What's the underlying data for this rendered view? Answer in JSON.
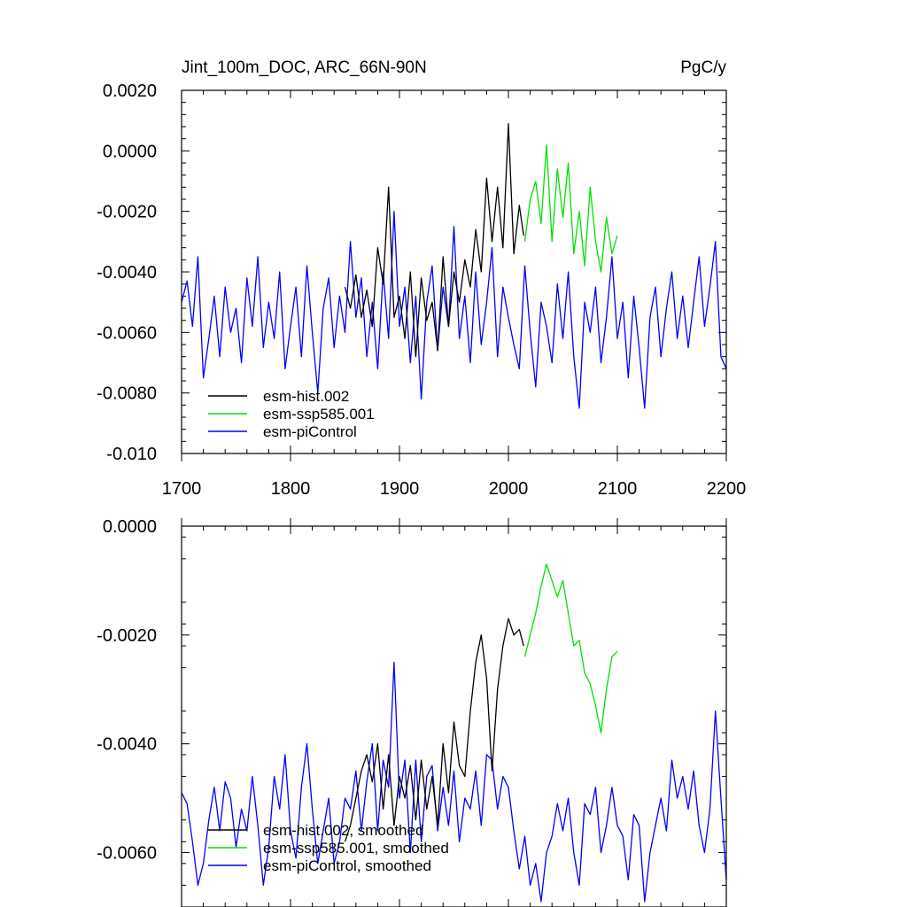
{
  "chart_data": [
    {
      "type": "line",
      "title": "Jint_100m_DOC, ARC_66N-90N",
      "units": "PgC/y",
      "xlim": [
        1700,
        2200
      ],
      "ylim": [
        -0.01,
        0.002
      ],
      "xticks": [
        1700,
        1800,
        1900,
        2000,
        2100,
        2200
      ],
      "xtick_labels": [
        "1700",
        "1800",
        "1900",
        "2000",
        "2100",
        "2200"
      ],
      "yticks": [
        -0.01,
        -0.008,
        -0.006,
        -0.004,
        -0.002,
        0.0,
        0.002
      ],
      "ytick_labels": [
        "-0.010",
        "-0.0080",
        "-0.0060",
        "-0.0040",
        "-0.0020",
        "0.0000",
        "0.0020"
      ],
      "legend_position": "bottom-left",
      "series": [
        {
          "name": "esm-hist.002",
          "color": "#000000",
          "x": [
            1850,
            1855,
            1860,
            1865,
            1870,
            1875,
            1880,
            1885,
            1890,
            1895,
            1900,
            1905,
            1910,
            1915,
            1920,
            1925,
            1930,
            1935,
            1940,
            1945,
            1950,
            1955,
            1960,
            1965,
            1970,
            1975,
            1980,
            1985,
            1990,
            1995,
            2000,
            2005,
            2010,
            2014
          ],
          "values": [
            -0.0045,
            -0.0052,
            -0.0041,
            -0.0055,
            -0.0046,
            -0.0058,
            -0.0032,
            -0.0044,
            -0.0012,
            -0.0055,
            -0.0048,
            -0.0062,
            -0.004,
            -0.0068,
            -0.0042,
            -0.0056,
            -0.005,
            -0.0066,
            -0.0035,
            -0.0058,
            -0.004,
            -0.005,
            -0.0036,
            -0.0045,
            -0.0026,
            -0.004,
            -0.0009,
            -0.003,
            -0.0012,
            -0.0032,
            0.0009,
            -0.0034,
            -0.0018,
            -0.0028
          ]
        },
        {
          "name": "esm-ssp585.001",
          "color": "#00e000",
          "x": [
            2015,
            2020,
            2025,
            2030,
            2035,
            2040,
            2045,
            2050,
            2055,
            2060,
            2065,
            2070,
            2075,
            2080,
            2085,
            2090,
            2095,
            2100
          ],
          "values": [
            -0.003,
            -0.0016,
            -0.001,
            -0.0024,
            0.0002,
            -0.003,
            -0.0006,
            -0.0022,
            -0.0004,
            -0.0034,
            -0.002,
            -0.0038,
            -0.0012,
            -0.003,
            -0.004,
            -0.0022,
            -0.0034,
            -0.0028
          ]
        },
        {
          "name": "esm-piControl",
          "color": "#0000ff",
          "x": [
            1700,
            1705,
            1710,
            1715,
            1720,
            1725,
            1730,
            1735,
            1740,
            1745,
            1750,
            1755,
            1760,
            1765,
            1770,
            1775,
            1780,
            1785,
            1790,
            1795,
            1800,
            1805,
            1810,
            1815,
            1820,
            1825,
            1830,
            1835,
            1840,
            1845,
            1850,
            1855,
            1860,
            1865,
            1870,
            1875,
            1880,
            1885,
            1890,
            1895,
            1900,
            1905,
            1910,
            1915,
            1920,
            1925,
            1930,
            1935,
            1940,
            1945,
            1950,
            1955,
            1960,
            1965,
            1970,
            1975,
            1980,
            1985,
            1990,
            1995,
            2000,
            2005,
            2010,
            2015,
            2020,
            2025,
            2030,
            2035,
            2040,
            2045,
            2050,
            2055,
            2060,
            2065,
            2070,
            2075,
            2080,
            2085,
            2090,
            2095,
            2100,
            2105,
            2110,
            2115,
            2120,
            2125,
            2130,
            2135,
            2140,
            2145,
            2150,
            2155,
            2160,
            2165,
            2170,
            2175,
            2180,
            2185,
            2190,
            2195,
            2200
          ],
          "values": [
            -0.005,
            -0.0043,
            -0.0058,
            -0.0035,
            -0.0075,
            -0.0062,
            -0.0048,
            -0.0068,
            -0.0045,
            -0.006,
            -0.0052,
            -0.007,
            -0.0042,
            -0.0058,
            -0.0035,
            -0.0065,
            -0.005,
            -0.0062,
            -0.004,
            -0.0072,
            -0.0058,
            -0.0045,
            -0.0068,
            -0.0038,
            -0.006,
            -0.008,
            -0.0052,
            -0.0042,
            -0.0065,
            -0.0048,
            -0.006,
            -0.003,
            -0.0055,
            -0.0042,
            -0.0068,
            -0.005,
            -0.0072,
            -0.004,
            -0.0062,
            -0.002,
            -0.0058,
            -0.0045,
            -0.007,
            -0.0048,
            -0.0082,
            -0.005,
            -0.0038,
            -0.0066,
            -0.0045,
            -0.0058,
            -0.0025,
            -0.0062,
            -0.0048,
            -0.007,
            -0.004,
            -0.0064,
            -0.005,
            -0.0032,
            -0.0068,
            -0.0045,
            -0.0055,
            -0.0064,
            -0.0072,
            -0.0038,
            -0.006,
            -0.0078,
            -0.005,
            -0.0058,
            -0.007,
            -0.0044,
            -0.0062,
            -0.004,
            -0.0068,
            -0.0085,
            -0.005,
            -0.006,
            -0.0045,
            -0.007,
            -0.0055,
            -0.0035,
            -0.0062,
            -0.005,
            -0.0075,
            -0.0048,
            -0.0065,
            -0.0085,
            -0.0055,
            -0.0045,
            -0.0068,
            -0.0052,
            -0.004,
            -0.0062,
            -0.0048,
            -0.0065,
            -0.005,
            -0.0035,
            -0.0058,
            -0.0045,
            -0.003,
            -0.0068,
            -0.0072
          ]
        }
      ]
    },
    {
      "type": "line",
      "xlim": [
        1700,
        2200
      ],
      "ylim": [
        -0.007,
        0.0
      ],
      "xticks": [
        1700,
        1800,
        1900,
        2000,
        2100,
        2200
      ],
      "yticks": [
        -0.006,
        -0.004,
        -0.002,
        0.0
      ],
      "ytick_labels": [
        "-0.0060",
        "-0.0040",
        "-0.0020",
        "0.0000"
      ],
      "legend_position": "bottom-left",
      "series": [
        {
          "name": "esm-hist.002, smoothed",
          "color": "#000000",
          "x": [
            1850,
            1855,
            1860,
            1865,
            1870,
            1875,
            1880,
            1885,
            1890,
            1895,
            1900,
            1905,
            1910,
            1915,
            1920,
            1925,
            1930,
            1935,
            1940,
            1945,
            1950,
            1955,
            1960,
            1965,
            1970,
            1975,
            1980,
            1985,
            1990,
            1995,
            2000,
            2005,
            2010,
            2014
          ],
          "values": [
            -0.0058,
            -0.0055,
            -0.005,
            -0.0045,
            -0.0042,
            -0.0047,
            -0.004,
            -0.0052,
            -0.0042,
            -0.0055,
            -0.0046,
            -0.005,
            -0.0044,
            -0.0054,
            -0.0043,
            -0.0052,
            -0.0046,
            -0.0055,
            -0.004,
            -0.0049,
            -0.0036,
            -0.0044,
            -0.0046,
            -0.0034,
            -0.0025,
            -0.002,
            -0.0028,
            -0.0045,
            -0.003,
            -0.0022,
            -0.0017,
            -0.002,
            -0.0019,
            -0.0022
          ]
        },
        {
          "name": "esm-ssp585.001, smoothed",
          "color": "#00e000",
          "x": [
            2015,
            2020,
            2025,
            2030,
            2035,
            2040,
            2045,
            2050,
            2055,
            2060,
            2065,
            2070,
            2075,
            2080,
            2085,
            2090,
            2095,
            2100
          ],
          "values": [
            -0.0024,
            -0.002,
            -0.0016,
            -0.0011,
            -0.0007,
            -0.001,
            -0.0013,
            -0.001,
            -0.0016,
            -0.0022,
            -0.0021,
            -0.0027,
            -0.0029,
            -0.0033,
            -0.0038,
            -0.003,
            -0.0024,
            -0.0023
          ]
        },
        {
          "name": "esm-piControl, smoothed",
          "color": "#0000ff",
          "x": [
            1700,
            1705,
            1710,
            1715,
            1720,
            1725,
            1730,
            1735,
            1740,
            1745,
            1750,
            1755,
            1760,
            1765,
            1770,
            1775,
            1780,
            1785,
            1790,
            1795,
            1800,
            1805,
            1810,
            1815,
            1820,
            1825,
            1830,
            1835,
            1840,
            1845,
            1850,
            1855,
            1860,
            1865,
            1870,
            1875,
            1880,
            1885,
            1890,
            1895,
            1900,
            1905,
            1910,
            1915,
            1920,
            1925,
            1930,
            1935,
            1940,
            1945,
            1950,
            1955,
            1960,
            1965,
            1970,
            1975,
            1980,
            1985,
            1990,
            1995,
            2000,
            2005,
            2010,
            2015,
            2020,
            2025,
            2030,
            2035,
            2040,
            2045,
            2050,
            2055,
            2060,
            2065,
            2070,
            2075,
            2080,
            2085,
            2090,
            2095,
            2100,
            2105,
            2110,
            2115,
            2120,
            2125,
            2130,
            2135,
            2140,
            2145,
            2150,
            2155,
            2160,
            2165,
            2170,
            2175,
            2180,
            2185,
            2190,
            2195,
            2200
          ],
          "values": [
            -0.0049,
            -0.0051,
            -0.0058,
            -0.0066,
            -0.0062,
            -0.0054,
            -0.0048,
            -0.0056,
            -0.0047,
            -0.005,
            -0.0059,
            -0.0052,
            -0.0056,
            -0.0046,
            -0.0055,
            -0.0066,
            -0.0059,
            -0.0046,
            -0.0052,
            -0.0042,
            -0.0056,
            -0.0061,
            -0.0048,
            -0.004,
            -0.0052,
            -0.0062,
            -0.0056,
            -0.005,
            -0.0062,
            -0.0058,
            -0.005,
            -0.0052,
            -0.0045,
            -0.0056,
            -0.0047,
            -0.004,
            -0.0056,
            -0.0043,
            -0.0048,
            -0.0025,
            -0.005,
            -0.0043,
            -0.006,
            -0.0043,
            -0.0058,
            -0.0046,
            -0.0044,
            -0.0056,
            -0.0048,
            -0.0055,
            -0.0045,
            -0.0058,
            -0.005,
            -0.0052,
            -0.0045,
            -0.0055,
            -0.0042,
            -0.0043,
            -0.0052,
            -0.0046,
            -0.0048,
            -0.0056,
            -0.0063,
            -0.0057,
            -0.0066,
            -0.0062,
            -0.0069,
            -0.006,
            -0.0057,
            -0.0051,
            -0.0056,
            -0.005,
            -0.006,
            -0.0066,
            -0.0051,
            -0.0053,
            -0.0048,
            -0.006,
            -0.0055,
            -0.0048,
            -0.0055,
            -0.0057,
            -0.0065,
            -0.0053,
            -0.0055,
            -0.0069,
            -0.006,
            -0.0055,
            -0.005,
            -0.0056,
            -0.0043,
            -0.005,
            -0.0046,
            -0.0052,
            -0.0045,
            -0.0055,
            -0.006,
            -0.0052,
            -0.0034,
            -0.005,
            -0.0065
          ]
        }
      ]
    }
  ]
}
